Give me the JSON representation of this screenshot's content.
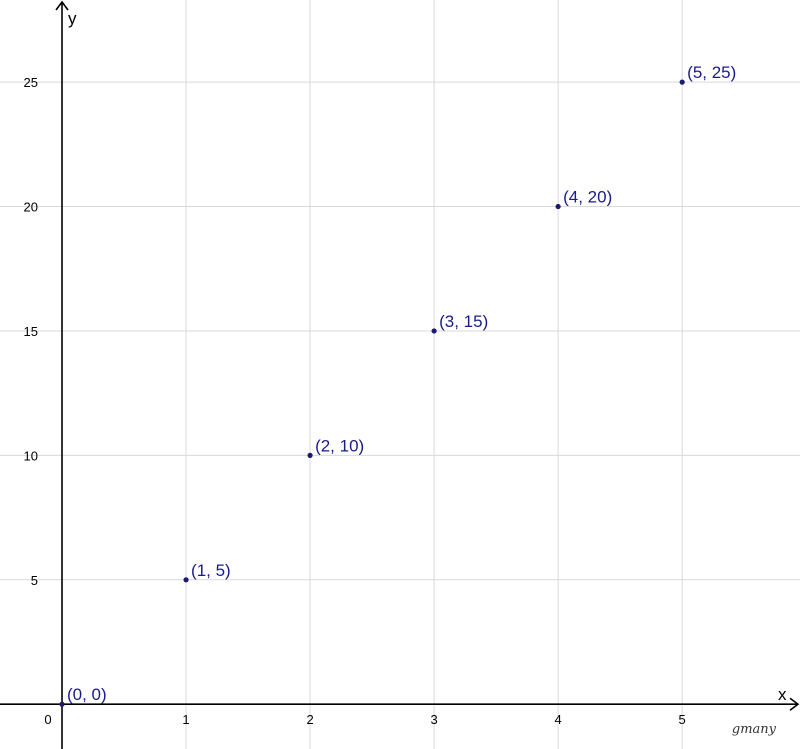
{
  "chart_data": {
    "type": "scatter",
    "title": "",
    "xlabel": "x",
    "ylabel": "y",
    "xlim": [
      -0.5,
      5.95
    ],
    "ylim": [
      -1.8,
      28.3
    ],
    "x_ticks": [
      1,
      2,
      3,
      4,
      5
    ],
    "y_ticks": [
      5,
      10,
      15,
      20,
      25
    ],
    "origin_label": "0",
    "grid": true,
    "point_color": "#1a1a6e",
    "label_color": "#1a1a8c",
    "series": [
      {
        "points": [
          {
            "x": 0,
            "y": 0,
            "label": "(0, 0)"
          },
          {
            "x": 1,
            "y": 5,
            "label": "(1, 5)"
          },
          {
            "x": 2,
            "y": 10,
            "label": "(2, 10)"
          },
          {
            "x": 3,
            "y": 15,
            "label": "(3, 15)"
          },
          {
            "x": 4,
            "y": 20,
            "label": "(4, 20)"
          },
          {
            "x": 5,
            "y": 25,
            "label": "(5, 25)"
          }
        ]
      }
    ]
  },
  "watermark": "gmany"
}
